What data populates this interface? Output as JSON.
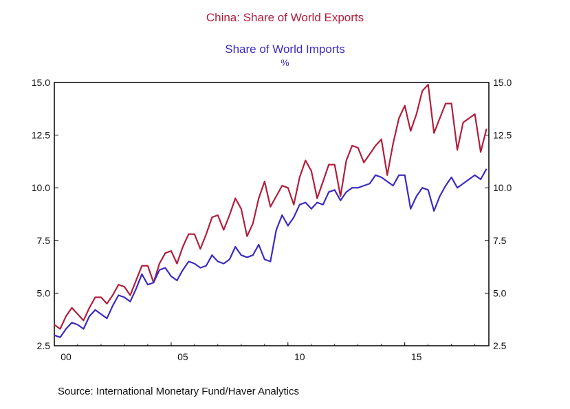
{
  "chart_data": {
    "type": "line",
    "title": "China: Share of World Exports",
    "subtitle": "Share of World Imports",
    "unit_label": "%",
    "source": "Source:  International Monetary Fund/Haver Analytics",
    "x_start": 2000.0,
    "x_step": 0.25,
    "xlim": [
      2000.0,
      2018.6
    ],
    "ylim": [
      2.5,
      15.0
    ],
    "y_ticks": [
      "15.0",
      "12.5",
      "10.0",
      "7.5",
      "5.0",
      "2.5"
    ],
    "x_ticks": [
      {
        "value": 2000.0,
        "label": "00"
      },
      {
        "value": 2005.0,
        "label": "05"
      },
      {
        "value": 2010.0,
        "label": "10"
      },
      {
        "value": 2015.0,
        "label": "15"
      }
    ],
    "series": [
      {
        "name": "Share of World Exports",
        "color": "#b01e3c",
        "values": [
          3.5,
          3.3,
          3.9,
          4.3,
          4.0,
          3.7,
          4.3,
          4.8,
          4.8,
          4.5,
          4.9,
          5.4,
          5.3,
          4.9,
          5.6,
          6.3,
          6.3,
          5.5,
          6.4,
          6.9,
          7.0,
          6.4,
          7.2,
          7.8,
          7.8,
          7.1,
          7.8,
          8.6,
          8.7,
          8.0,
          8.7,
          9.5,
          9.0,
          7.7,
          8.3,
          9.5,
          10.3,
          9.1,
          9.6,
          10.1,
          10.0,
          9.2,
          10.5,
          11.3,
          10.8,
          9.5,
          10.3,
          11.1,
          11.1,
          9.6,
          11.3,
          12.0,
          11.9,
          11.2,
          11.6,
          12.0,
          12.3,
          10.6,
          12.1,
          13.3,
          13.9,
          12.7,
          13.5,
          14.6,
          14.9,
          12.6,
          13.3,
          14.0,
          14.0,
          11.8,
          13.1,
          13.3,
          13.5,
          11.7,
          12.8
        ]
      },
      {
        "name": "Share of World Imports",
        "color": "#3a2bc0",
        "values": [
          3.0,
          2.9,
          3.3,
          3.6,
          3.5,
          3.3,
          3.9,
          4.2,
          4.0,
          3.8,
          4.4,
          4.9,
          4.8,
          4.6,
          5.2,
          5.9,
          5.4,
          5.5,
          6.1,
          6.2,
          5.8,
          5.6,
          6.1,
          6.5,
          6.4,
          6.2,
          6.3,
          6.8,
          6.5,
          6.4,
          6.6,
          7.2,
          6.8,
          6.7,
          6.8,
          7.3,
          6.6,
          6.5,
          8.0,
          8.7,
          8.2,
          8.6,
          9.2,
          9.3,
          9.0,
          9.3,
          9.2,
          9.8,
          9.9,
          9.4,
          9.8,
          10.0,
          10.0,
          10.1,
          10.2,
          10.6,
          10.5,
          10.3,
          10.1,
          10.6,
          10.6,
          9.0,
          9.6,
          10.0,
          9.9,
          8.9,
          9.6,
          10.1,
          10.5,
          10.0,
          10.2,
          10.4,
          10.6,
          10.4,
          10.9
        ]
      }
    ]
  }
}
